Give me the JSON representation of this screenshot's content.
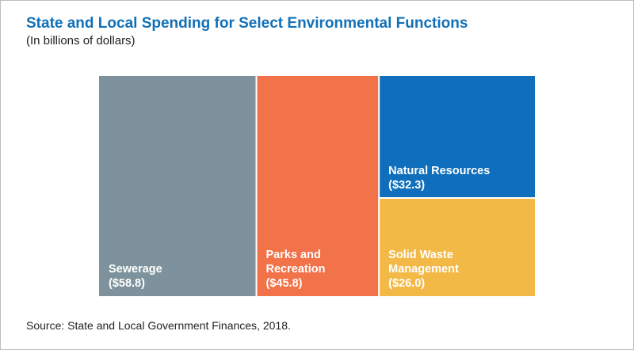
{
  "title": "State and Local Spending for Select Environmental Functions",
  "subtitle": "(In billions of dollars)",
  "source": "Source: State and Local Government Finances, 2018.",
  "chart_data": {
    "type": "treemap",
    "title": "State and Local Spending for Select Environmental Functions",
    "subtitle": "(In billions of dollars)",
    "unit": "billions of dollars",
    "items": [
      {
        "name": "Sewerage",
        "value": 58.8,
        "label_lines": [
          "Sewerage",
          "($58.8)"
        ],
        "color": "#7d929c"
      },
      {
        "name": "Parks and Recreation",
        "value": 45.8,
        "label_lines": [
          "Parks and",
          "Recreation",
          "($45.8)"
        ],
        "color": "#f2724a"
      },
      {
        "name": "Natural Resources",
        "value": 32.3,
        "label_lines": [
          "Natural Resources",
          "($32.3)"
        ],
        "color": "#0f6fbc"
      },
      {
        "name": "Solid Waste Management",
        "value": 26.0,
        "label_lines": [
          "Solid Waste",
          "Management",
          "($26.0)"
        ],
        "color": "#f3b947"
      }
    ]
  }
}
